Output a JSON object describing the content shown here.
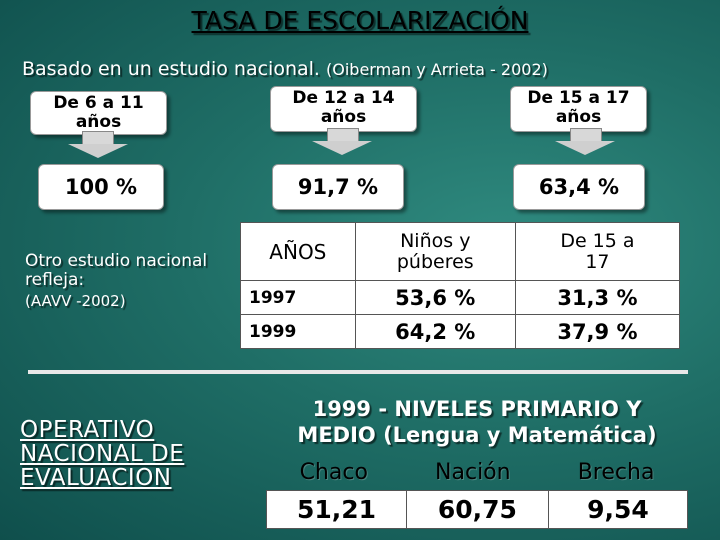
{
  "title": "TASA DE ESCOLARIZACIÓN",
  "subtitle": {
    "main": "Basado en un estudio nacional.",
    "source": "(Oiberman y Arrieta - 2002)"
  },
  "age_groups": [
    {
      "label": "De 6 a 11 años",
      "rate": "100 %"
    },
    {
      "label": "De 12 a 14 años",
      "rate": "91,7 %"
    },
    {
      "label": "De 15 a 17 años",
      "rate": "63,4 %"
    }
  ],
  "other_study": {
    "label": "Otro estudio nacional refleja:",
    "source": "(AAVV -2002)"
  },
  "table1": {
    "headers": [
      "AÑOS",
      "Niños y púberes",
      "De 15 a 17"
    ],
    "rows": [
      [
        "1997",
        "53,6 %",
        "31,3 %"
      ],
      [
        "1999",
        "64,2 %",
        "37,9 %"
      ]
    ]
  },
  "operativo": {
    "line1": "OPERATIVO",
    "line2": "NACIONAL DE",
    "line3": "EVALUACION"
  },
  "niveles": {
    "line1": "1999 - NIVELES PRIMARIO Y",
    "line2": "MEDIO (Lengua y Matemática)"
  },
  "table2": {
    "headers": [
      "Chaco",
      "Nación",
      "Brecha"
    ],
    "values": [
      "51,21",
      "60,75",
      "9,54"
    ]
  }
}
